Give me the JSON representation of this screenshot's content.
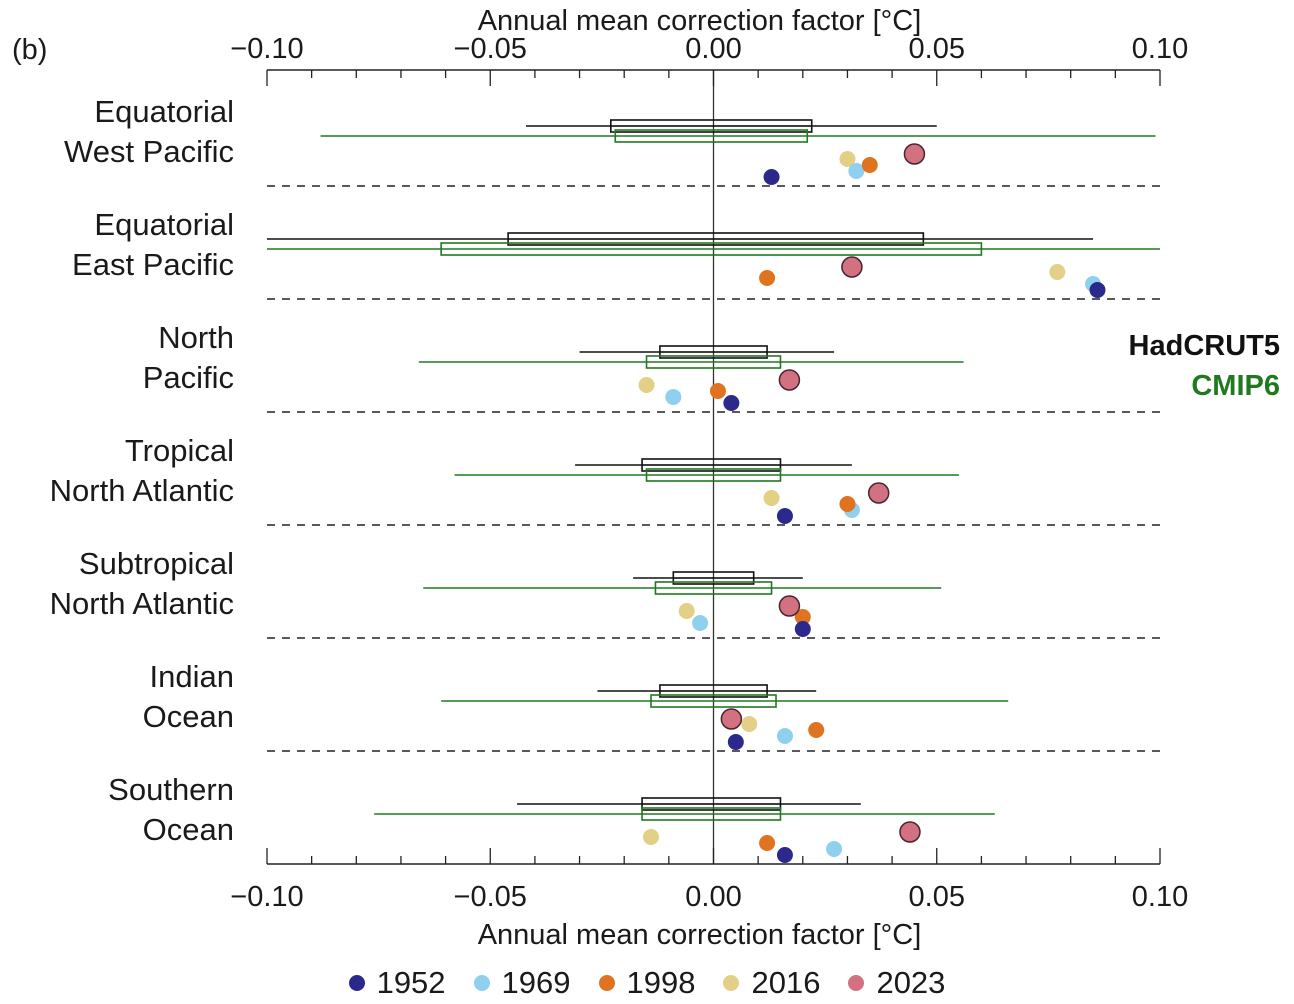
{
  "panel_label": "(b)",
  "series_key": {
    "hadcrut5": "HadCRUT5",
    "cmip6": "CMIP6"
  },
  "colors": {
    "hadcrut5": "#111111",
    "cmip6": "#1f7a1f",
    "1952": "#2b2a8c",
    "1969": "#8fd0ee",
    "1998": "#e0731f",
    "2016": "#e3cf85",
    "2023": "#d2717f"
  },
  "chart_data": {
    "type": "box-dot",
    "xlabel": "Annual mean correction factor [°C]",
    "xlim": [
      -0.1,
      0.1
    ],
    "xticks": [
      -0.1,
      -0.05,
      0.0,
      0.05,
      0.1
    ],
    "xtick_labels": [
      "−0.10",
      "−0.05",
      "0.00",
      "0.05",
      "0.10"
    ],
    "legend": [
      "1952",
      "1969",
      "1998",
      "2016",
      "2023"
    ],
    "regions": [
      {
        "name": [
          "Equatorial",
          "West Pacific"
        ],
        "hadcrut5": {
          "whisker": [
            -0.042,
            0.05
          ],
          "box": [
            -0.023,
            0.022
          ]
        },
        "cmip6": {
          "whisker": [
            -0.088,
            0.099
          ],
          "box": [
            -0.022,
            0.021
          ]
        },
        "points": {
          "1952": 0.013,
          "1969": 0.032,
          "1998": 0.035,
          "2016": 0.03,
          "2023": 0.045
        }
      },
      {
        "name": [
          "Equatorial",
          "East Pacific"
        ],
        "hadcrut5": {
          "whisker": [
            -0.1,
            0.085
          ],
          "box": [
            -0.046,
            0.047
          ]
        },
        "cmip6": {
          "whisker": [
            -0.1,
            0.1
          ],
          "box": [
            -0.061,
            0.06
          ]
        },
        "points": {
          "1952": 0.086,
          "1969": 0.085,
          "1998": 0.012,
          "2016": 0.077,
          "2023": 0.031
        }
      },
      {
        "name": [
          "North",
          "Pacific"
        ],
        "hadcrut5": {
          "whisker": [
            -0.03,
            0.027
          ],
          "box": [
            -0.012,
            0.012
          ]
        },
        "cmip6": {
          "whisker": [
            -0.066,
            0.056
          ],
          "box": [
            -0.015,
            0.015
          ]
        },
        "points": {
          "1952": 0.004,
          "1969": -0.009,
          "1998": 0.001,
          "2016": -0.015,
          "2023": 0.017
        }
      },
      {
        "name": [
          "Tropical",
          "North Atlantic"
        ],
        "hadcrut5": {
          "whisker": [
            -0.031,
            0.031
          ],
          "box": [
            -0.016,
            0.015
          ]
        },
        "cmip6": {
          "whisker": [
            -0.058,
            0.055
          ],
          "box": [
            -0.015,
            0.015
          ]
        },
        "points": {
          "1952": 0.016,
          "1969": 0.031,
          "1998": 0.03,
          "2016": 0.013,
          "2023": 0.037
        }
      },
      {
        "name": [
          "Subtropical",
          "North Atlantic"
        ],
        "hadcrut5": {
          "whisker": [
            -0.018,
            0.02
          ],
          "box": [
            -0.009,
            0.009
          ]
        },
        "cmip6": {
          "whisker": [
            -0.065,
            0.051
          ],
          "box": [
            -0.013,
            0.013
          ]
        },
        "points": {
          "1952": 0.02,
          "1969": -0.003,
          "1998": 0.02,
          "2016": -0.006,
          "2023": 0.017
        }
      },
      {
        "name": [
          "Indian",
          "Ocean"
        ],
        "hadcrut5": {
          "whisker": [
            -0.026,
            0.023
          ],
          "box": [
            -0.012,
            0.012
          ]
        },
        "cmip6": {
          "whisker": [
            -0.061,
            0.066
          ],
          "box": [
            -0.014,
            0.014
          ]
        },
        "points": {
          "1952": 0.005,
          "1969": 0.016,
          "1998": 0.023,
          "2016": 0.008,
          "2023": 0.004
        }
      },
      {
        "name": [
          "Southern",
          "Ocean"
        ],
        "hadcrut5": {
          "whisker": [
            -0.044,
            0.033
          ],
          "box": [
            -0.016,
            0.015
          ]
        },
        "cmip6": {
          "whisker": [
            -0.076,
            0.063
          ],
          "box": [
            -0.016,
            0.015
          ]
        },
        "points": {
          "1952": 0.016,
          "1969": 0.027,
          "1998": 0.012,
          "2016": -0.014,
          "2023": 0.044
        }
      }
    ]
  }
}
